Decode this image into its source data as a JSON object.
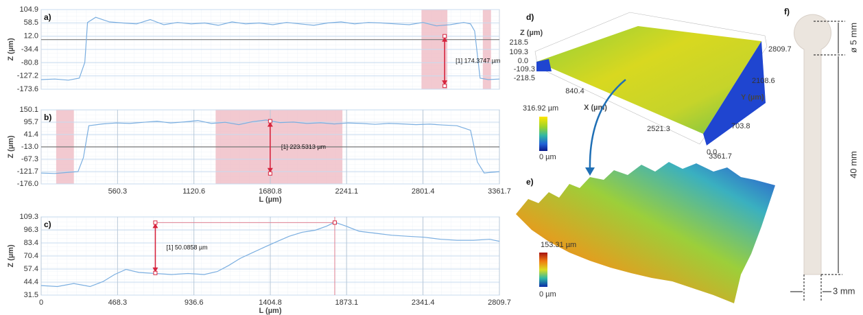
{
  "chart_data": [
    {
      "type": "line",
      "panel": "a)",
      "xlabel": null,
      "ylabel": "Z (µm)",
      "color": "#7aaee0",
      "x": [
        0,
        100,
        200,
        280,
        320,
        340,
        400,
        500,
        600,
        700,
        800,
        900,
        1000,
        1100,
        1200,
        1300,
        1400,
        1500,
        1600,
        1700,
        1800,
        1900,
        2000,
        2100,
        2200,
        2300,
        2400,
        2500,
        2600,
        2700,
        2800,
        2900,
        3000,
        3100,
        3150,
        3180,
        3220,
        3280,
        3361.7
      ],
      "values": [
        -140,
        -138,
        -142,
        -135,
        -80,
        60,
        78,
        62,
        58,
        55,
        70,
        52,
        60,
        55,
        58,
        50,
        62,
        55,
        58,
        52,
        60,
        55,
        50,
        58,
        62,
        55,
        60,
        58,
        55,
        52,
        60,
        48,
        52,
        60,
        55,
        30,
        -135,
        -140,
        -138
      ],
      "xlim": [
        0,
        3361.7
      ],
      "ylim": [
        -173.6,
        104.9
      ],
      "yticks": [
        104.9,
        58.5,
        {
          "value": 12,
          "label": "12.0"
        },
        -34.4,
        -80.8,
        -127.2,
        -173.6
      ],
      "ref_line": 0,
      "highlights": [
        [
          2790,
          2980
        ],
        [
          3240,
          3300
        ]
      ],
      "measurement": {
        "label": "[1] 174.3747 µm",
        "x": 2960,
        "y_top": 12,
        "y_bottom": -162
      }
    },
    {
      "type": "line",
      "panel": "b)",
      "xlabel": "L (µm)",
      "ylabel": "Z (µm)",
      "color": "#7aaee0",
      "x": [
        0,
        100,
        200,
        270,
        310,
        350,
        450,
        550,
        650,
        750,
        850,
        950,
        1050,
        1150,
        1250,
        1350,
        1450,
        1550,
        1650,
        1750,
        1850,
        1950,
        2050,
        2150,
        2250,
        2350,
        2450,
        2550,
        2650,
        2750,
        2850,
        2950,
        3050,
        3150,
        3200,
        3250,
        3300,
        3361.7
      ],
      "values": [
        -128,
        -130,
        -125,
        -122,
        -60,
        80,
        88,
        92,
        90,
        95,
        100,
        92,
        97,
        103,
        90,
        95,
        85,
        98,
        105,
        94,
        96,
        90,
        93,
        88,
        92,
        90,
        86,
        90,
        88,
        85,
        87,
        83,
        80,
        60,
        -80,
        -128,
        -125,
        -122
      ],
      "xlim": [
        0,
        3361.7
      ],
      "ylim": [
        -176,
        150.1
      ],
      "xticks": [
        560.3,
        1120.6,
        1680.8,
        2241.1,
        2801.4,
        3361.7
      ],
      "yticks": [
        150.1,
        95.7,
        41.4,
        {
          "value": -13,
          "label": "-13.0"
        },
        -67.3,
        -121.7,
        {
          "value": -176,
          "label": "-176.0"
        }
      ],
      "ref_line": -13,
      "highlights": [
        [
          110,
          240
        ],
        [
          1280,
          2210
        ]
      ],
      "measurement": {
        "label": "[1] 223.5313 µm",
        "x": 1680,
        "y_top": 100,
        "y_bottom": -130
      }
    },
    {
      "type": "line",
      "panel": "c)",
      "xlabel": "L (µm)",
      "ylabel": "Z (µm)",
      "color": "#7aaee0",
      "x": [
        0,
        100,
        200,
        300,
        380,
        450,
        520,
        600,
        700,
        800,
        900,
        1000,
        1080,
        1150,
        1220,
        1300,
        1380,
        1450,
        1520,
        1600,
        1680,
        1750,
        1800,
        1870,
        1950,
        2050,
        2150,
        2250,
        2350,
        2450,
        2550,
        2650,
        2750,
        2809.7
      ],
      "values": [
        41,
        40,
        43,
        40,
        45,
        52,
        57,
        54,
        53,
        52,
        53,
        52,
        55,
        61,
        68,
        74,
        80,
        85,
        90,
        94,
        96,
        100,
        104,
        100,
        95,
        93,
        91,
        90,
        89,
        87,
        86,
        86,
        87,
        85
      ],
      "xlim": [
        0,
        2809.7
      ],
      "ylim": [
        31.5,
        109.3
      ],
      "xticks": [
        0,
        468.3,
        936.6,
        1404.8,
        1873.1,
        2341.4,
        2809.7
      ],
      "yticks": [
        109.3,
        96.3,
        83.4,
        70.4,
        57.4,
        44.4,
        31.5
      ],
      "measurement": {
        "label": "[1] 50.0858 µm",
        "x": 700,
        "x_end": 1800,
        "y_top": 103.6,
        "y_bottom": 53.5
      }
    }
  ],
  "panels": {
    "d": {
      "label": "d)",
      "z_axis": "Z (µm)",
      "z_ticks": [
        "218.5",
        "109.3",
        "0.0",
        "-109.3",
        "-218.5"
      ],
      "x_axis": "X (µm)",
      "x_ticks": [
        "840.4",
        "2521.3",
        "3361.7"
      ],
      "y_axis": "Y (µm)",
      "y_ticks": [
        "2809.7",
        "2108.6",
        "703.8",
        "0.0"
      ],
      "colorbar_max": "316.92 µm",
      "colorbar_min": "0 µm"
    },
    "e": {
      "label": "e)",
      "colorbar_max": "153.31 µm",
      "colorbar_min": "0 µm"
    },
    "f": {
      "label": "f)",
      "diameter": "ø 5 mm",
      "length": "40 mm",
      "width": "3 mm"
    }
  }
}
